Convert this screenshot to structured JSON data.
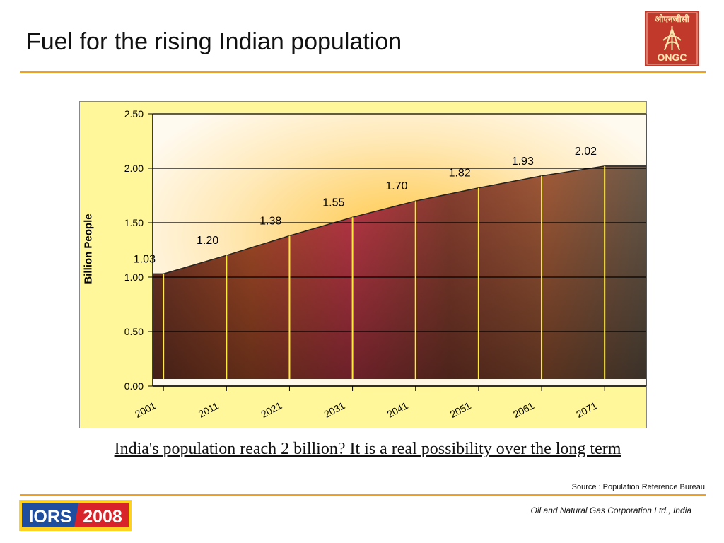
{
  "slide": {
    "title": "Fuel for the rising Indian population",
    "caption": "India's population reach 2 billion? It is a real possibility over the long term",
    "source": "Source : Population Reference Bureau",
    "company": "Oil and Natural Gas Corporation Ltd., India"
  },
  "logos": {
    "ongc_hindi": "ओएनजीसी",
    "ongc": "ONGC",
    "iors_left": "IORS",
    "iors_right": "2008"
  },
  "colors": {
    "accent_line": "#f0a020",
    "chart_background": "#fff799",
    "ongc_red": "#c0392b",
    "iors_blue": "#1f4e9e",
    "iors_red": "#d8232a"
  },
  "chart_data": {
    "type": "area",
    "x": [
      "2001",
      "2011",
      "2021",
      "2031",
      "2041",
      "2051",
      "2061",
      "2071"
    ],
    "series": [
      {
        "values": [
          1.03,
          1.2,
          1.38,
          1.55,
          1.7,
          1.82,
          1.93,
          2.02
        ]
      }
    ],
    "data_labels": [
      "1.03",
      "1.20",
      "1.38",
      "1.55",
      "1.70",
      "1.82",
      "1.93",
      "2.02"
    ],
    "ylabel": "Billion People",
    "xlabel": "",
    "ylim": [
      0,
      2.5
    ],
    "y_ticks": [
      "0.00",
      "0.50",
      "1.00",
      "1.50",
      "2.00",
      "2.50"
    ],
    "gridlines": true,
    "legend": false
  }
}
